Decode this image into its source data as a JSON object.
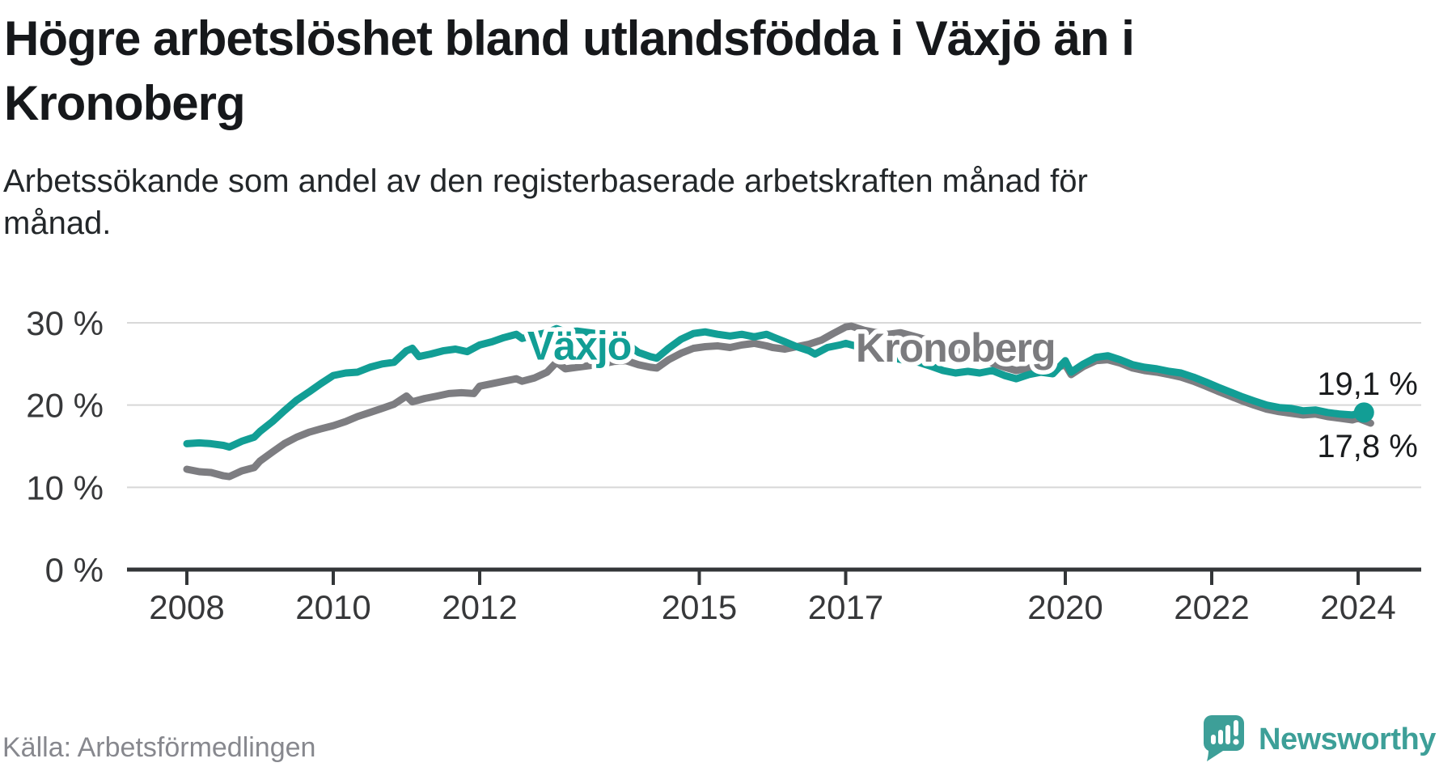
{
  "title": {
    "line1": "Högre arbetslöshet bland utlandsfödda i Växjö än i",
    "line2": "Kronoberg"
  },
  "subtitle": {
    "line1": "Arbetssökande som andel av den registerbaserade arbetskraften månad för",
    "line2": "månad."
  },
  "source": "Källa: Arbetsförmedlingen",
  "logo": {
    "wordmark": "Newsworthy",
    "color": "#3d9f98"
  },
  "colors": {
    "vaxjo": "#129e95",
    "kronoberg": "#7d7d81",
    "grid": "#d8d8d8",
    "axis": "#333638",
    "axis_text": "#37383a",
    "end_label_text": "#1a1c1e",
    "halo": "#ffffff"
  },
  "chart_data": {
    "type": "line",
    "x_unit": "decimal_year",
    "xlabel": "",
    "ylabel": "",
    "xlim": [
      2008,
      2024.2
    ],
    "ylim": [
      0,
      30
    ],
    "grid": true,
    "grid_values": [
      30,
      20,
      10
    ],
    "x_ticks": {
      "values": [
        2008,
        2010,
        2012,
        2015,
        2017,
        2020,
        2022,
        2024
      ],
      "labels": [
        "2008",
        "2010",
        "2012",
        "2015",
        "2017",
        "2020",
        "2022",
        "2024"
      ]
    },
    "y_ticks": {
      "values": [
        30,
        20,
        10,
        0
      ],
      "labels": [
        "30 %",
        "20 %",
        "10 %",
        "0 %"
      ]
    },
    "series": [
      {
        "name": "Växjö",
        "color": "#129e95",
        "end_dot": true,
        "end_value_label": "19,1 %",
        "points": [
          [
            2008.0,
            15.3
          ],
          [
            2008.17,
            15.4
          ],
          [
            2008.33,
            15.3
          ],
          [
            2008.5,
            15.1
          ],
          [
            2008.58,
            14.9
          ],
          [
            2008.75,
            15.6
          ],
          [
            2008.92,
            16.1
          ],
          [
            2009.0,
            16.8
          ],
          [
            2009.17,
            18.0
          ],
          [
            2009.33,
            19.3
          ],
          [
            2009.5,
            20.6
          ],
          [
            2009.67,
            21.6
          ],
          [
            2009.83,
            22.6
          ],
          [
            2010.0,
            23.6
          ],
          [
            2010.17,
            23.9
          ],
          [
            2010.33,
            24.0
          ],
          [
            2010.5,
            24.6
          ],
          [
            2010.67,
            25.0
          ],
          [
            2010.83,
            25.2
          ],
          [
            2011.0,
            26.6
          ],
          [
            2011.08,
            26.9
          ],
          [
            2011.17,
            25.9
          ],
          [
            2011.33,
            26.2
          ],
          [
            2011.5,
            26.6
          ],
          [
            2011.67,
            26.8
          ],
          [
            2011.83,
            26.5
          ],
          [
            2012.0,
            27.3
          ],
          [
            2012.17,
            27.7
          ],
          [
            2012.33,
            28.2
          ],
          [
            2012.5,
            28.6
          ],
          [
            2012.58,
            28.1
          ],
          [
            2012.75,
            28.5
          ],
          [
            2012.92,
            28.8
          ],
          [
            2013.05,
            29.3
          ],
          [
            2013.17,
            28.9
          ],
          [
            2013.33,
            29.0
          ],
          [
            2013.5,
            28.8
          ],
          [
            2013.67,
            28.6
          ],
          [
            2013.83,
            28.2
          ],
          [
            2014.0,
            27.5
          ],
          [
            2014.17,
            26.4
          ],
          [
            2014.33,
            25.9
          ],
          [
            2014.42,
            25.7
          ],
          [
            2014.58,
            26.9
          ],
          [
            2014.75,
            28.0
          ],
          [
            2014.92,
            28.7
          ],
          [
            2015.08,
            28.9
          ],
          [
            2015.25,
            28.6
          ],
          [
            2015.42,
            28.4
          ],
          [
            2015.58,
            28.6
          ],
          [
            2015.75,
            28.3
          ],
          [
            2015.92,
            28.6
          ],
          [
            2016.0,
            28.3
          ],
          [
            2016.17,
            27.7
          ],
          [
            2016.33,
            27.1
          ],
          [
            2016.5,
            26.6
          ],
          [
            2016.58,
            26.2
          ],
          [
            2016.75,
            27.0
          ],
          [
            2016.92,
            27.3
          ],
          [
            2017.0,
            27.5
          ],
          [
            2017.17,
            27.1
          ],
          [
            2017.33,
            26.4
          ],
          [
            2017.5,
            26.0
          ],
          [
            2017.67,
            25.7
          ],
          [
            2017.83,
            25.4
          ],
          [
            2018.0,
            25.2
          ],
          [
            2018.17,
            24.7
          ],
          [
            2018.33,
            24.2
          ],
          [
            2018.5,
            23.9
          ],
          [
            2018.67,
            24.1
          ],
          [
            2018.83,
            23.9
          ],
          [
            2019.0,
            24.2
          ],
          [
            2019.17,
            23.6
          ],
          [
            2019.33,
            23.2
          ],
          [
            2019.5,
            23.7
          ],
          [
            2019.67,
            24.0
          ],
          [
            2019.83,
            23.8
          ],
          [
            2020.0,
            25.4
          ],
          [
            2020.08,
            24.0
          ],
          [
            2020.25,
            25.0
          ],
          [
            2020.42,
            25.8
          ],
          [
            2020.58,
            26.0
          ],
          [
            2020.75,
            25.5
          ],
          [
            2020.92,
            24.9
          ],
          [
            2021.08,
            24.6
          ],
          [
            2021.25,
            24.4
          ],
          [
            2021.42,
            24.1
          ],
          [
            2021.58,
            23.9
          ],
          [
            2021.75,
            23.4
          ],
          [
            2021.92,
            22.8
          ],
          [
            2022.08,
            22.2
          ],
          [
            2022.25,
            21.6
          ],
          [
            2022.42,
            21.0
          ],
          [
            2022.58,
            20.5
          ],
          [
            2022.75,
            20.0
          ],
          [
            2022.92,
            19.7
          ],
          [
            2023.08,
            19.6
          ],
          [
            2023.25,
            19.3
          ],
          [
            2023.42,
            19.4
          ],
          [
            2023.58,
            19.1
          ],
          [
            2023.75,
            18.9
          ],
          [
            2023.92,
            18.8
          ],
          [
            2024.0,
            19.0
          ],
          [
            2024.08,
            19.1
          ]
        ]
      },
      {
        "name": "Kronoberg",
        "color": "#7d7d81",
        "end_dot": false,
        "end_value_label": "17,8 %",
        "points": [
          [
            2008.0,
            12.2
          ],
          [
            2008.17,
            11.9
          ],
          [
            2008.33,
            11.8
          ],
          [
            2008.5,
            11.4
          ],
          [
            2008.58,
            11.3
          ],
          [
            2008.75,
            12.0
          ],
          [
            2008.92,
            12.4
          ],
          [
            2009.0,
            13.2
          ],
          [
            2009.17,
            14.3
          ],
          [
            2009.33,
            15.3
          ],
          [
            2009.5,
            16.1
          ],
          [
            2009.67,
            16.7
          ],
          [
            2009.83,
            17.1
          ],
          [
            2010.0,
            17.5
          ],
          [
            2010.17,
            18.0
          ],
          [
            2010.33,
            18.6
          ],
          [
            2010.5,
            19.1
          ],
          [
            2010.67,
            19.6
          ],
          [
            2010.83,
            20.1
          ],
          [
            2011.0,
            21.1
          ],
          [
            2011.08,
            20.4
          ],
          [
            2011.25,
            20.8
          ],
          [
            2011.42,
            21.1
          ],
          [
            2011.58,
            21.4
          ],
          [
            2011.75,
            21.5
          ],
          [
            2011.92,
            21.4
          ],
          [
            2012.0,
            22.3
          ],
          [
            2012.17,
            22.6
          ],
          [
            2012.33,
            22.9
          ],
          [
            2012.5,
            23.2
          ],
          [
            2012.58,
            22.9
          ],
          [
            2012.75,
            23.3
          ],
          [
            2012.92,
            24.0
          ],
          [
            2013.05,
            25.2
          ],
          [
            2013.17,
            24.4
          ],
          [
            2013.33,
            24.6
          ],
          [
            2013.5,
            24.8
          ],
          [
            2013.67,
            25.0
          ],
          [
            2013.83,
            25.3
          ],
          [
            2014.0,
            25.4
          ],
          [
            2014.17,
            24.9
          ],
          [
            2014.33,
            24.6
          ],
          [
            2014.42,
            24.5
          ],
          [
            2014.58,
            25.5
          ],
          [
            2014.75,
            26.3
          ],
          [
            2014.92,
            26.9
          ],
          [
            2015.08,
            27.1
          ],
          [
            2015.25,
            27.2
          ],
          [
            2015.42,
            27.0
          ],
          [
            2015.58,
            27.3
          ],
          [
            2015.75,
            27.5
          ],
          [
            2015.92,
            27.2
          ],
          [
            2016.0,
            27.0
          ],
          [
            2016.17,
            26.8
          ],
          [
            2016.33,
            27.1
          ],
          [
            2016.5,
            27.4
          ],
          [
            2016.67,
            27.9
          ],
          [
            2016.83,
            28.7
          ],
          [
            2017.0,
            29.5
          ],
          [
            2017.08,
            29.6
          ],
          [
            2017.25,
            29.1
          ],
          [
            2017.42,
            28.8
          ],
          [
            2017.58,
            28.6
          ],
          [
            2017.75,
            28.8
          ],
          [
            2017.92,
            28.4
          ],
          [
            2018.08,
            28.0
          ],
          [
            2018.25,
            27.5
          ],
          [
            2018.42,
            27.0
          ],
          [
            2018.58,
            26.5
          ],
          [
            2018.75,
            26.0
          ],
          [
            2018.92,
            25.5
          ],
          [
            2019.0,
            25.1
          ],
          [
            2019.17,
            24.6
          ],
          [
            2019.33,
            24.2
          ],
          [
            2019.5,
            24.5
          ],
          [
            2019.67,
            24.8
          ],
          [
            2019.83,
            24.4
          ],
          [
            2020.0,
            24.9
          ],
          [
            2020.08,
            23.7
          ],
          [
            2020.25,
            24.7
          ],
          [
            2020.42,
            25.4
          ],
          [
            2020.58,
            25.5
          ],
          [
            2020.75,
            25.1
          ],
          [
            2020.92,
            24.5
          ],
          [
            2021.08,
            24.2
          ],
          [
            2021.25,
            24.0
          ],
          [
            2021.42,
            23.7
          ],
          [
            2021.58,
            23.4
          ],
          [
            2021.75,
            22.9
          ],
          [
            2021.92,
            22.3
          ],
          [
            2022.08,
            21.7
          ],
          [
            2022.25,
            21.1
          ],
          [
            2022.42,
            20.5
          ],
          [
            2022.58,
            20.0
          ],
          [
            2022.75,
            19.5
          ],
          [
            2022.92,
            19.2
          ],
          [
            2023.08,
            19.0
          ],
          [
            2023.25,
            18.8
          ],
          [
            2023.42,
            18.9
          ],
          [
            2023.58,
            18.6
          ],
          [
            2023.75,
            18.4
          ],
          [
            2023.92,
            18.2
          ],
          [
            2024.0,
            18.4
          ],
          [
            2024.17,
            17.8
          ]
        ]
      }
    ],
    "annotations": {
      "series_labels": [
        {
          "text": "Växjö",
          "t": 2013.36,
          "v": 25.5,
          "color": "#129e95"
        },
        {
          "text": "Kronoberg",
          "t": 2018.5,
          "v": 25.3,
          "color": "#7b7b7e"
        }
      ],
      "end_labels": [
        {
          "text": "19,1 %",
          "t": 2023.44,
          "v": 21.25
        },
        {
          "text": "17,8 %",
          "t": 2023.44,
          "v": 13.67
        }
      ]
    }
  }
}
